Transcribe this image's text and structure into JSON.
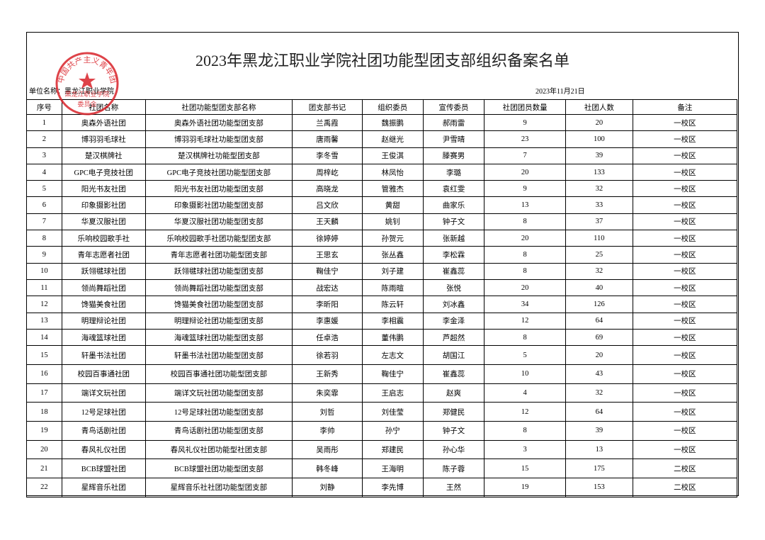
{
  "header": {
    "title": "2023年黑龙江职业学院社团功能型团支部组织备案名单",
    "unit": "单位名称：黑龙江职业学院",
    "date": "2023年11月21日"
  },
  "stamp": {
    "ring": "中国共产主义青年团",
    "center": "黑龙江职业学院",
    "bottom": "委员会"
  },
  "table": {
    "columns": [
      "序号",
      "社团名称",
      "社团功能型团支部名称",
      "团支部书记",
      "组织委员",
      "宣传委员",
      "社团团员数量",
      "社团人数",
      "备注"
    ],
    "rows": [
      [
        1,
        "奥森外语社团",
        "奥森外语社团功能型团支部",
        "兰禹霞",
        "魏振鹏",
        "郝雨雷",
        9,
        20,
        "一校区"
      ],
      [
        2,
        "博羽羽毛球社",
        "博羽羽毛球社功能型团支部",
        "唐雨馨",
        "赵继光",
        "尹雪晴",
        23,
        100,
        "一校区"
      ],
      [
        3,
        "楚汉棋牌社",
        "楚汉棋牌社功能型团支部",
        "李冬雪",
        "王俊淇",
        "滕赛男",
        7,
        39,
        "一校区"
      ],
      [
        4,
        "GPC电子竞技社团",
        "GPC电子竞技社团功能型团支部",
        "周梓屹",
        "林凤怡",
        "李璐",
        20,
        133,
        "一校区"
      ],
      [
        5,
        "阳光书友社团",
        "阳光书友社团功能型团支部",
        "高晓龙",
        "管雅杰",
        "袁红雯",
        9,
        32,
        "一校区"
      ],
      [
        6,
        "印象摄影社团",
        "印象摄影社团功能型团支部",
        "吕文欣",
        "黄甜",
        "曲家乐",
        13,
        33,
        "一校区"
      ],
      [
        7,
        "华夏汉服社团",
        "华夏汉服社团功能型团支部",
        "王天麟",
        "姚钊",
        "钟子文",
        8,
        37,
        "一校区"
      ],
      [
        8,
        "乐响校园歌手社",
        "乐响校园歌手社团功能型团支部",
        "徐婷婷",
        "孙贺元",
        "张新越",
        20,
        110,
        "一校区"
      ],
      [
        9,
        "青年志愿者社团",
        "青年志愿者社团功能型团支部",
        "王思玄",
        "张丛鑫",
        "李松霖",
        8,
        25,
        "一校区"
      ],
      [
        10,
        "跃翎毽球社团",
        "跃翎毽球社团功能型团支部",
        "鞠佳宁",
        "刘子建",
        "崔鑫蕊",
        8,
        32,
        "一校区"
      ],
      [
        11,
        "领尚舞蹈社团",
        "领尚舞蹈社团功能型团支部",
        "战宏达",
        "陈雨暄",
        "张悦",
        20,
        40,
        "一校区"
      ],
      [
        12,
        "馋猫美食社团",
        "馋猫美食社团功能型团支部",
        "李昕阳",
        "陈云轩",
        "刘冰鑫",
        34,
        126,
        "一校区"
      ],
      [
        13,
        "明理辩论社团",
        "明理辩论社团功能型团支部",
        "李惠媛",
        "李相震",
        "李金泽",
        12,
        64,
        "一校区"
      ],
      [
        14,
        "海魂篮球社团",
        "海魂篮球社团功能型团支部",
        "任卓浩",
        "董伟鹏",
        "芦超然",
        8,
        69,
        "一校区"
      ],
      [
        15,
        "轩墨书法社团",
        "轩墨书法社团功能型团支部",
        "徐若羽",
        "左志文",
        "胡国江",
        5,
        20,
        "一校区"
      ],
      [
        16,
        "校园百事通社团",
        "校园百事通社团功能型团支部",
        "王新秀",
        "鞠佳宁",
        "崔鑫蕊",
        10,
        43,
        "一校区"
      ],
      [
        17,
        "端详文玩社团",
        "端详文玩社团功能型团支部",
        "朱奕霏",
        "王启志",
        "赵爽",
        4,
        32,
        "一校区"
      ],
      [
        18,
        "12号足球社团",
        "12号足球社团功能型团支部",
        "刘哲",
        "刘佳莹",
        "郑健民",
        12,
        64,
        "一校区"
      ],
      [
        19,
        "青鸟话剧社团",
        "青鸟话剧社团功能型团支部",
        "李帅",
        "孙宁",
        "钟子文",
        8,
        39,
        "一校区"
      ],
      [
        20,
        "春风礼仪社团",
        "春风礼仪社团功能型社团支部",
        "吴雨彤",
        "郑建民",
        "孙心华",
        3,
        13,
        "一校区"
      ],
      [
        21,
        "BCB球盟社团",
        "BCB球盟社团功能型团支部",
        "韩冬峰",
        "王海明",
        "陈子蓉",
        15,
        175,
        "二校区"
      ],
      [
        22,
        "星辉音乐社团",
        "星辉音乐社社团功能型团支部",
        "刘静",
        "李先博",
        "王然",
        19,
        153,
        "二校区"
      ]
    ]
  }
}
